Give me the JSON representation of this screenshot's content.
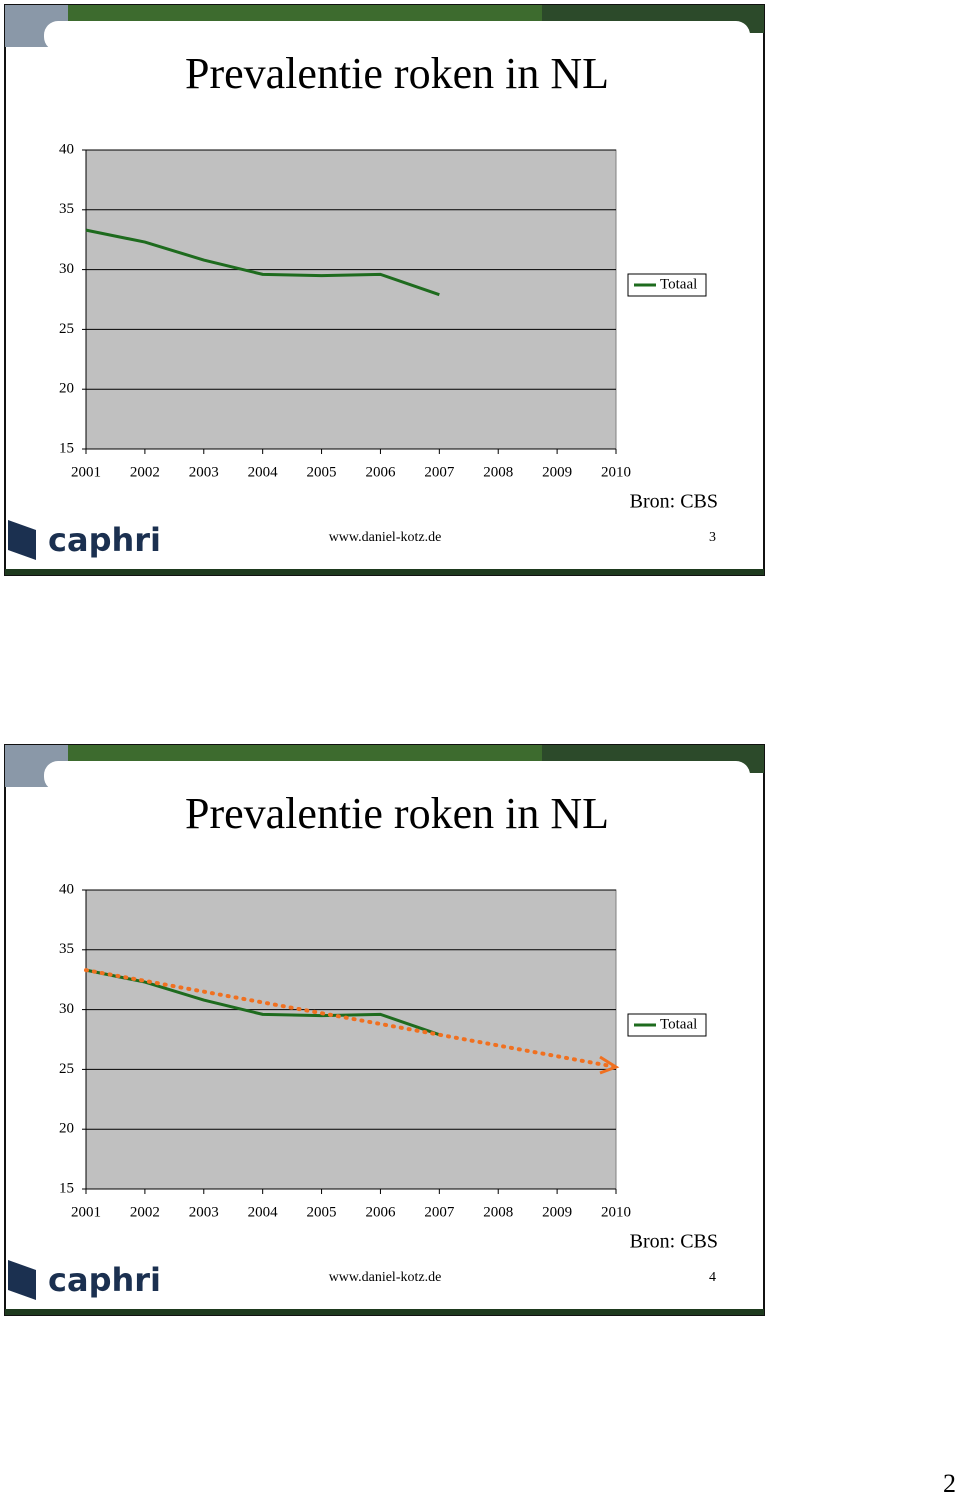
{
  "slides": [
    {
      "title": "Prevalentie roken in NL",
      "source": "Bron: CBS",
      "url": "www.daniel-kotz.de",
      "number": "3",
      "logo": "caphri",
      "chart_data": {
        "type": "line",
        "categories": [
          "2001",
          "2002",
          "2003",
          "2004",
          "2005",
          "2006",
          "2007",
          "2008",
          "2009",
          "2010"
        ],
        "series": [
          {
            "name": "Totaal",
            "color": "#1e6b1e",
            "values": [
              33.3,
              32.3,
              30.8,
              29.6,
              29.5,
              29.6,
              27.9,
              null,
              null,
              null
            ]
          }
        ],
        "ylim": [
          15,
          40
        ],
        "yticks": [
          15,
          20,
          25,
          30,
          35,
          40
        ],
        "grid": true,
        "legend": "right"
      }
    },
    {
      "title": "Prevalentie roken in NL",
      "source": "Bron: CBS",
      "url": "www.daniel-kotz.de",
      "number": "4",
      "logo": "caphri",
      "chart_data": {
        "type": "line",
        "categories": [
          "2001",
          "2002",
          "2003",
          "2004",
          "2005",
          "2006",
          "2007",
          "2008",
          "2009",
          "2010"
        ],
        "series": [
          {
            "name": "Totaal",
            "color": "#1e6b1e",
            "values": [
              33.3,
              32.3,
              30.8,
              29.6,
              29.5,
              29.6,
              27.9,
              null,
              null,
              null
            ]
          }
        ],
        "trend": {
          "color": "#f07020",
          "from": 33.3,
          "to": 25.2
        },
        "ylim": [
          15,
          40
        ],
        "yticks": [
          15,
          20,
          25,
          30,
          35,
          40
        ],
        "grid": true,
        "legend": "right"
      }
    }
  ],
  "page_number": "2"
}
